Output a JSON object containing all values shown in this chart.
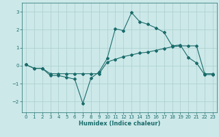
{
  "title": "",
  "xlabel": "Humidex (Indice chaleur)",
  "ylabel": "",
  "background_color": "#cce8e8",
  "grid_color": "#aacece",
  "line_color": "#1a6b6b",
  "marker_color": "#1a6b6b",
  "xlim": [
    -0.5,
    23.5
  ],
  "ylim": [
    -2.6,
    3.5
  ],
  "xticks": [
    0,
    1,
    2,
    3,
    4,
    5,
    6,
    7,
    8,
    9,
    10,
    11,
    12,
    13,
    14,
    15,
    16,
    17,
    18,
    19,
    20,
    21,
    22,
    23
  ],
  "yticks": [
    -2,
    -1,
    0,
    1,
    2,
    3
  ],
  "series1_x": [
    0,
    1,
    2,
    3,
    4,
    5,
    6,
    7,
    8,
    9,
    10,
    11,
    12,
    13,
    14,
    15,
    16,
    17,
    18,
    19,
    20,
    21,
    22,
    23
  ],
  "series1_y": [
    0.05,
    -0.15,
    -0.15,
    -0.55,
    -0.55,
    -0.65,
    -0.75,
    -2.1,
    -0.7,
    -0.35,
    0.4,
    2.05,
    1.95,
    2.95,
    2.45,
    2.3,
    2.1,
    1.85,
    1.1,
    1.15,
    0.45,
    0.15,
    -0.5,
    -0.5
  ],
  "series2_x": [
    0,
    1,
    2,
    3,
    4,
    5,
    6,
    7,
    8,
    9,
    10,
    11,
    12,
    13,
    14,
    15,
    16,
    17,
    18,
    19,
    20,
    21,
    22,
    23
  ],
  "series2_y": [
    0.05,
    -0.15,
    -0.15,
    -0.45,
    -0.45,
    -0.45,
    -0.45,
    -0.45,
    -0.45,
    -0.45,
    0.2,
    0.35,
    0.5,
    0.6,
    0.7,
    0.75,
    0.85,
    0.95,
    1.05,
    1.1,
    1.1,
    1.1,
    -0.45,
    -0.45
  ]
}
